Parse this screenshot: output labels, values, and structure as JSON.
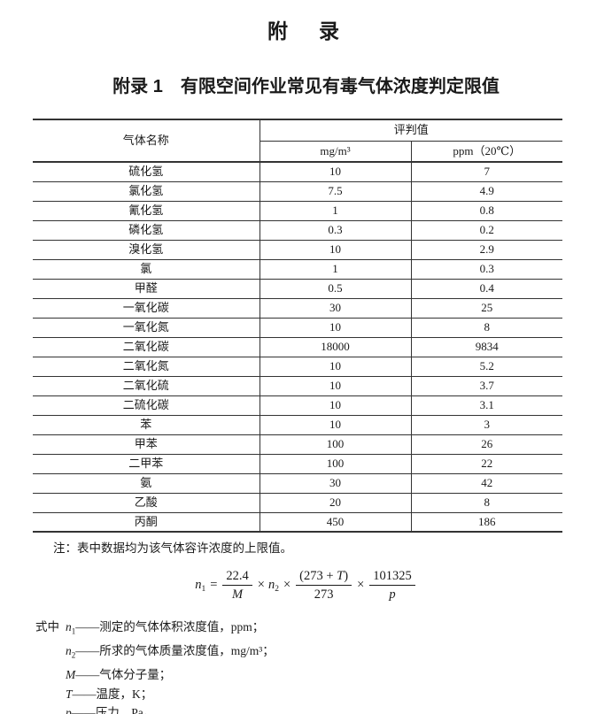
{
  "colors": {
    "ink": "#1a1a1a",
    "border": "#333333",
    "page_bg": "#ffffff"
  },
  "page": {
    "title": "附　录",
    "subtitle": "附录 1　有限空间作业常见有毒气体浓度判定限值"
  },
  "table": {
    "col_gas_header": "气体名称",
    "group_header": "评判值",
    "unit_mg": "mg/m³",
    "unit_ppm": "ppm（20℃）",
    "rows": [
      {
        "gas": "硫化氢",
        "mg": "10",
        "ppm": "7"
      },
      {
        "gas": "氯化氢",
        "mg": "7.5",
        "ppm": "4.9"
      },
      {
        "gas": "氰化氢",
        "mg": "1",
        "ppm": "0.8"
      },
      {
        "gas": "磷化氢",
        "mg": "0.3",
        "ppm": "0.2"
      },
      {
        "gas": "溴化氢",
        "mg": "10",
        "ppm": "2.9"
      },
      {
        "gas": "氯",
        "mg": "1",
        "ppm": "0.3"
      },
      {
        "gas": "甲醛",
        "mg": "0.5",
        "ppm": "0.4"
      },
      {
        "gas": "一氧化碳",
        "mg": "30",
        "ppm": "25"
      },
      {
        "gas": "一氧化氮",
        "mg": "10",
        "ppm": "8"
      },
      {
        "gas": "二氧化碳",
        "mg": "18000",
        "ppm": "9834"
      },
      {
        "gas": "二氧化氮",
        "mg": "10",
        "ppm": "5.2"
      },
      {
        "gas": "二氧化硫",
        "mg": "10",
        "ppm": "3.7"
      },
      {
        "gas": "二硫化碳",
        "mg": "10",
        "ppm": "3.1"
      },
      {
        "gas": "苯",
        "mg": "10",
        "ppm": "3"
      },
      {
        "gas": "甲苯",
        "mg": "100",
        "ppm": "26"
      },
      {
        "gas": "二甲苯",
        "mg": "100",
        "ppm": "22"
      },
      {
        "gas": "氨",
        "mg": "30",
        "ppm": "42"
      },
      {
        "gas": "乙酸",
        "mg": "20",
        "ppm": "8"
      },
      {
        "gas": "丙酮",
        "mg": "450",
        "ppm": "186"
      }
    ]
  },
  "note": "注：表中数据均为该气体容许浓度的上限值。",
  "formula": {
    "lhs_var": "n",
    "lhs_sub": "1",
    "equals": "=",
    "frac1_num": "22.4",
    "frac1_den": "M",
    "times": "×",
    "mid_var": "n",
    "mid_sub": "2",
    "frac2_num_pre": "(273 + ",
    "frac2_num_var": "T",
    "frac2_num_post": ")",
    "frac2_den": "273",
    "frac3_num": "101325",
    "frac3_den": "p"
  },
  "definitions": {
    "intro": "式中",
    "items": [
      {
        "symbol": "n",
        "sub": "1",
        "desc": "——测定的气体体积浓度值，ppm；"
      },
      {
        "symbol": "n",
        "sub": "2",
        "desc": "——所求的气体质量浓度值，mg/m³；"
      },
      {
        "symbol": "M",
        "sub": "",
        "desc": "——气体分子量；"
      },
      {
        "symbol": "T",
        "sub": "",
        "desc": "——温度，K；"
      },
      {
        "symbol": "p",
        "sub": "",
        "desc": "——压力，Pa。"
      }
    ]
  }
}
